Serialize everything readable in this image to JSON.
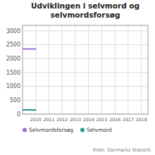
{
  "chart_data": {
    "type": "line",
    "title": "Udviklingen i selvmord og\nselvmordsforsøg",
    "x": [
      2009,
      2010
    ],
    "series": [
      {
        "name": "Selvmordsforsøg",
        "color": "#9b6fd4",
        "values": [
          2350,
          2350
        ]
      },
      {
        "name": "Selvmord",
        "color": "#1a9a8c",
        "values": [
          150,
          150
        ]
      }
    ],
    "xlim": [
      2009.0,
      2018.5
    ],
    "xticks": [
      2010,
      2011,
      2012,
      2013,
      2014,
      2015,
      2016,
      2017,
      2018
    ],
    "ylim": [
      0,
      3200
    ],
    "yticks": [
      0,
      500,
      1000,
      1500,
      2000,
      2500,
      3000
    ],
    "grid": true,
    "legend": "bottom",
    "annotations": [
      "Kilde: Danmarks Statistik"
    ]
  }
}
